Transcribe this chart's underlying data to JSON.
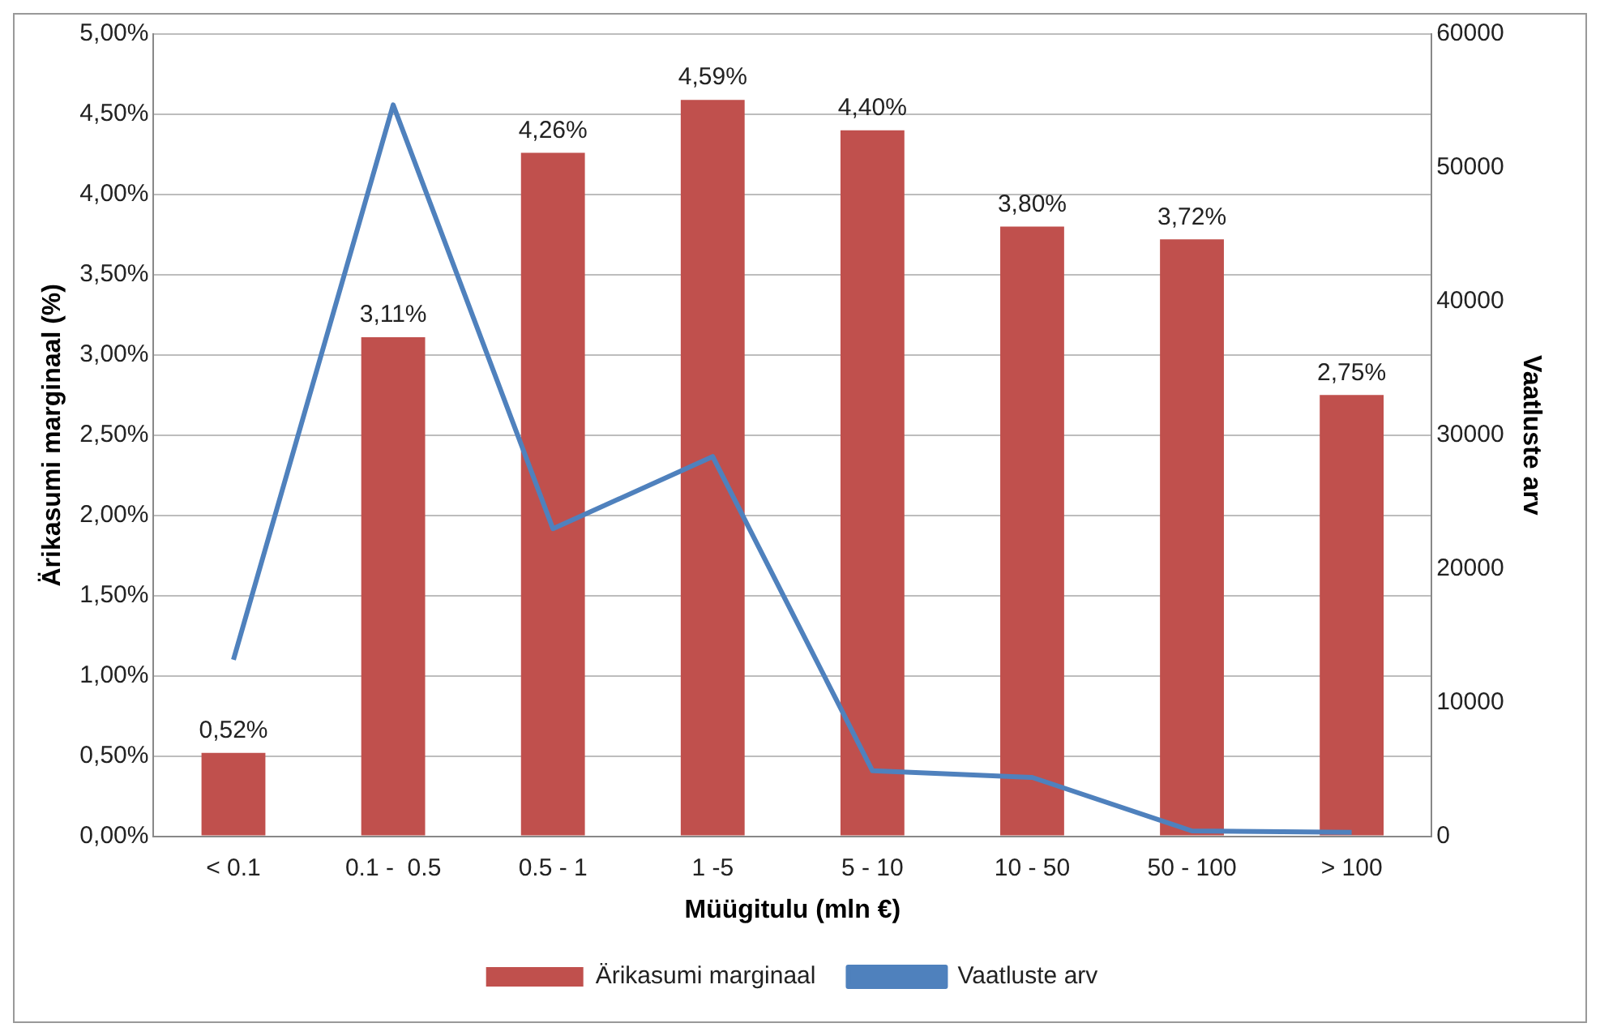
{
  "chart_data": {
    "type": "bar",
    "xlabel": "Müügitulu (mln €)",
    "ylabel": "Ärikasumi marginaal (%)",
    "y2label": "Vaatluste arv",
    "categories": [
      "< 0.1",
      "0.1 -  0.5",
      "0.5 - 1",
      "1 -5",
      "5 - 10",
      "10 - 50",
      "50 - 100",
      "> 100"
    ],
    "series": [
      {
        "name": "Ärikasumi marginaal",
        "color": "#c0504d",
        "values": [
          0.52,
          3.11,
          4.26,
          4.59,
          4.4,
          3.8,
          3.72,
          2.75
        ],
        "value_labels": [
          "0,52%",
          "3,11%",
          "4,26%",
          "4,59%",
          "4,40%",
          "3,80%",
          "3,72%",
          "2,75%"
        ]
      },
      {
        "name": "Vaatluste arv",
        "type": "line",
        "axis": "y2",
        "color": "#4f81bd",
        "values": [
          13200,
          54700,
          23000,
          28400,
          4900,
          4400,
          400,
          300
        ]
      }
    ],
    "ylim": [
      0,
      5
    ],
    "yticks": [
      {
        "value": 0,
        "label": "0,00%"
      },
      {
        "value": 0.5,
        "label": "0,50%"
      },
      {
        "value": 1,
        "label": "1,00%"
      },
      {
        "value": 1.5,
        "label": "1,50%"
      },
      {
        "value": 2,
        "label": "2,00%"
      },
      {
        "value": 2.5,
        "label": "2,50%"
      },
      {
        "value": 3,
        "label": "3,00%"
      },
      {
        "value": 3.5,
        "label": "3,50%"
      },
      {
        "value": 4,
        "label": "4,00%"
      },
      {
        "value": 4.5,
        "label": "4,50%"
      },
      {
        "value": 5,
        "label": "5,00%"
      }
    ],
    "y2lim": [
      0,
      60000
    ],
    "y2ticks": [
      0,
      10000,
      20000,
      30000,
      40000,
      50000,
      60000
    ],
    "grid": "y",
    "legend": "bottom",
    "marker": "none",
    "line_style": "solid"
  }
}
